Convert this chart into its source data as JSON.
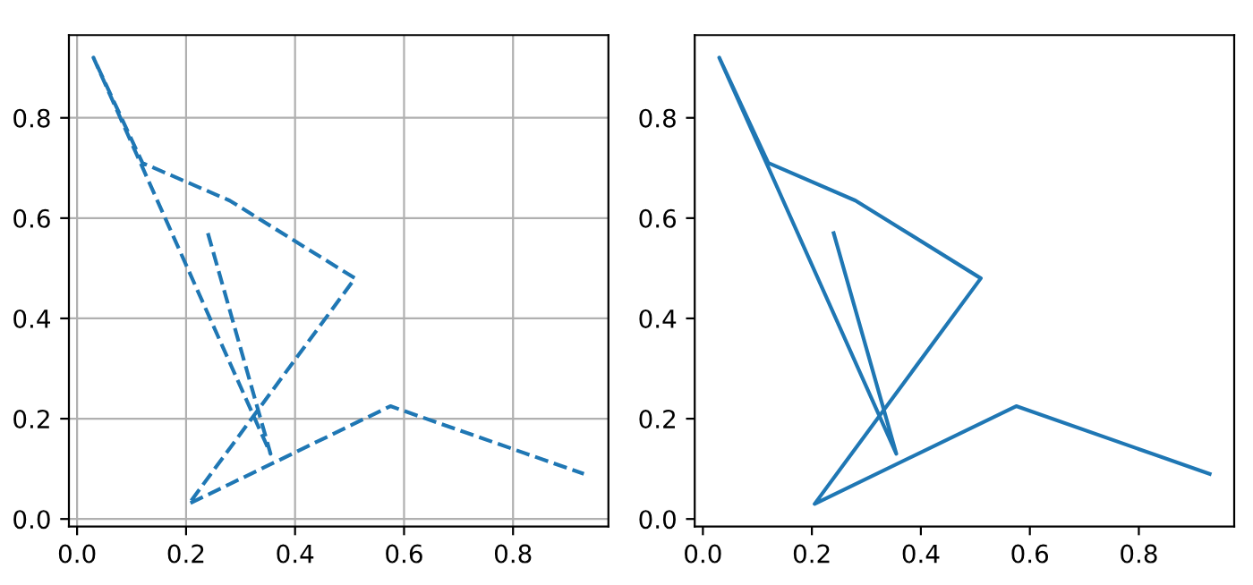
{
  "chart_data": [
    {
      "type": "line",
      "x": [
        0.24,
        0.355,
        0.03,
        0.12,
        0.28,
        0.51,
        0.205,
        0.575,
        0.93
      ],
      "series": [
        {
          "color": "#1f77b4",
          "values": [
            0.57,
            0.13,
            0.92,
            0.71,
            0.635,
            0.48,
            0.03,
            0.225,
            0.09
          ]
        }
      ],
      "xlim": [
        -0.015,
        0.975
      ],
      "ylim": [
        -0.015,
        0.965
      ],
      "xticks": [
        {
          "value": 0,
          "label": "0.0"
        },
        0.2,
        0.4,
        0.6,
        0.8
      ],
      "yticks": [
        {
          "value": 0,
          "label": "0.0"
        },
        0.2,
        0.4,
        0.6,
        0.8
      ],
      "grid": true,
      "line_style": "dashed"
    },
    {
      "type": "line",
      "x": [
        0.24,
        0.355,
        0.03,
        0.12,
        0.28,
        0.51,
        0.205,
        0.575,
        0.93
      ],
      "series": [
        {
          "color": "#1f77b4",
          "values": [
            0.57,
            0.13,
            0.92,
            0.71,
            0.635,
            0.48,
            0.03,
            0.225,
            0.09
          ]
        }
      ],
      "xlim": [
        -0.015,
        0.975
      ],
      "ylim": [
        -0.015,
        0.965
      ],
      "xticks": [
        {
          "value": 0,
          "label": "0.0"
        },
        0.2,
        0.4,
        0.6,
        0.8
      ],
      "yticks": [
        {
          "value": 0,
          "label": "0.0"
        },
        0.2,
        0.4,
        0.6,
        0.8
      ],
      "grid": false,
      "line_style": "solid"
    }
  ]
}
